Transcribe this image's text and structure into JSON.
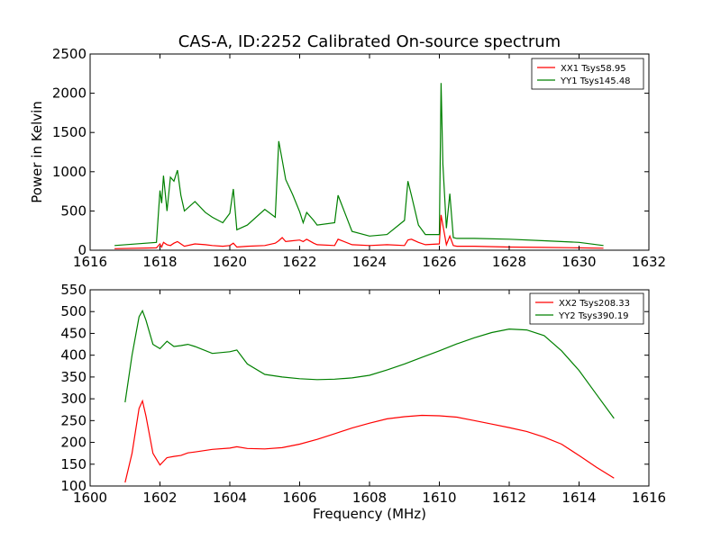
{
  "chart_data": [
    {
      "type": "line",
      "title": "CAS-A, ID:2252 Calibrated On-source spectrum",
      "xlabel": "",
      "ylabel": "Power in Kelvin",
      "xlim": [
        1616,
        1632
      ],
      "ylim": [
        0,
        2500
      ],
      "xticks": [
        1616,
        1618,
        1620,
        1622,
        1624,
        1626,
        1628,
        1630,
        1632
      ],
      "yticks": [
        0,
        500,
        1000,
        1500,
        2000,
        2500
      ],
      "legend_position": "top-right",
      "grid": false,
      "series": [
        {
          "name": "XX1 Tsys58.95",
          "color": "#ff0000",
          "x": [
            1616.7,
            1617.9,
            1618.0,
            1618.05,
            1618.1,
            1618.2,
            1618.3,
            1618.4,
            1618.5,
            1618.6,
            1618.7,
            1619.0,
            1619.3,
            1619.5,
            1619.8,
            1620.0,
            1620.1,
            1620.2,
            1620.5,
            1621.0,
            1621.3,
            1621.4,
            1621.5,
            1621.6,
            1621.8,
            1622.0,
            1622.1,
            1622.2,
            1622.4,
            1622.5,
            1623.0,
            1623.1,
            1623.5,
            1624.0,
            1624.5,
            1625.0,
            1625.1,
            1625.2,
            1625.4,
            1625.6,
            1626.0,
            1626.05,
            1626.1,
            1626.2,
            1626.3,
            1626.4,
            1626.5,
            1627.0,
            1628.0,
            1629.0,
            1630.0,
            1630.7
          ],
          "y": [
            20,
            30,
            80,
            40,
            100,
            70,
            60,
            90,
            110,
            80,
            50,
            80,
            70,
            60,
            50,
            60,
            90,
            40,
            50,
            60,
            90,
            120,
            160,
            110,
            120,
            130,
            110,
            140,
            90,
            70,
            60,
            140,
            70,
            60,
            70,
            60,
            130,
            140,
            100,
            70,
            80,
            450,
            320,
            70,
            180,
            60,
            50,
            50,
            40,
            35,
            30,
            25
          ]
        },
        {
          "name": "YY1 Tsys145.48",
          "color": "#008000",
          "x": [
            1616.7,
            1617.9,
            1618.0,
            1618.05,
            1618.1,
            1618.2,
            1618.3,
            1618.4,
            1618.5,
            1618.6,
            1618.7,
            1619.0,
            1619.3,
            1619.5,
            1619.8,
            1620.0,
            1620.1,
            1620.2,
            1620.5,
            1621.0,
            1621.3,
            1621.4,
            1621.5,
            1621.6,
            1621.8,
            1622.0,
            1622.1,
            1622.2,
            1622.4,
            1622.5,
            1623.0,
            1623.1,
            1623.5,
            1624.0,
            1624.5,
            1625.0,
            1625.1,
            1625.2,
            1625.4,
            1625.6,
            1626.0,
            1626.05,
            1626.1,
            1626.2,
            1626.3,
            1626.4,
            1626.5,
            1627.0,
            1628.0,
            1629.0,
            1630.0,
            1630.7
          ],
          "y": [
            60,
            100,
            760,
            600,
            950,
            500,
            930,
            880,
            1020,
            700,
            500,
            620,
            480,
            420,
            350,
            470,
            780,
            260,
            320,
            520,
            420,
            1390,
            1150,
            900,
            710,
            490,
            350,
            480,
            380,
            320,
            350,
            700,
            240,
            180,
            200,
            380,
            880,
            700,
            320,
            200,
            200,
            2130,
            1100,
            280,
            720,
            160,
            150,
            150,
            140,
            120,
            100,
            60
          ]
        }
      ]
    },
    {
      "type": "line",
      "title": "",
      "xlabel": "Frequency (MHz)",
      "ylabel": "",
      "xlim": [
        1600,
        1616
      ],
      "ylim": [
        100,
        550
      ],
      "xticks": [
        1600,
        1602,
        1604,
        1606,
        1608,
        1610,
        1612,
        1614,
        1616
      ],
      "yticks": [
        100,
        150,
        200,
        250,
        300,
        350,
        400,
        450,
        500,
        550
      ],
      "legend_position": "top-right",
      "grid": false,
      "series": [
        {
          "name": "XX2 Tsys208.33",
          "color": "#ff0000",
          "x": [
            1601.0,
            1601.2,
            1601.4,
            1601.5,
            1601.6,
            1601.8,
            1602.0,
            1602.2,
            1602.4,
            1602.6,
            1602.8,
            1603.0,
            1603.5,
            1604.0,
            1604.2,
            1604.5,
            1605.0,
            1605.5,
            1606.0,
            1606.5,
            1607.0,
            1607.5,
            1608.0,
            1608.5,
            1609.0,
            1609.5,
            1610.0,
            1610.5,
            1611.0,
            1611.5,
            1612.0,
            1612.5,
            1613.0,
            1613.5,
            1614.0,
            1614.5,
            1615.0
          ],
          "y": [
            108,
            175,
            278,
            295,
            260,
            175,
            148,
            165,
            168,
            170,
            176,
            178,
            184,
            187,
            190,
            186,
            185,
            188,
            196,
            207,
            220,
            233,
            244,
            254,
            259,
            262,
            261,
            258,
            250,
            242,
            234,
            225,
            212,
            196,
            170,
            143,
            118
          ]
        },
        {
          "name": "YY2 Tsys390.19",
          "color": "#008000",
          "x": [
            1601.0,
            1601.2,
            1601.4,
            1601.5,
            1601.6,
            1601.8,
            1602.0,
            1602.2,
            1602.4,
            1602.6,
            1602.8,
            1603.0,
            1603.5,
            1604.0,
            1604.2,
            1604.5,
            1605.0,
            1605.5,
            1606.0,
            1606.5,
            1607.0,
            1607.5,
            1608.0,
            1608.5,
            1609.0,
            1609.5,
            1610.0,
            1610.5,
            1611.0,
            1611.5,
            1612.0,
            1612.5,
            1613.0,
            1613.5,
            1614.0,
            1614.5,
            1615.0
          ],
          "y": [
            292,
            400,
            488,
            502,
            480,
            425,
            415,
            432,
            420,
            422,
            425,
            420,
            404,
            408,
            412,
            380,
            356,
            350,
            346,
            344,
            345,
            348,
            354,
            366,
            380,
            395,
            410,
            426,
            440,
            452,
            460,
            458,
            445,
            410,
            365,
            310,
            255
          ]
        }
      ]
    }
  ]
}
